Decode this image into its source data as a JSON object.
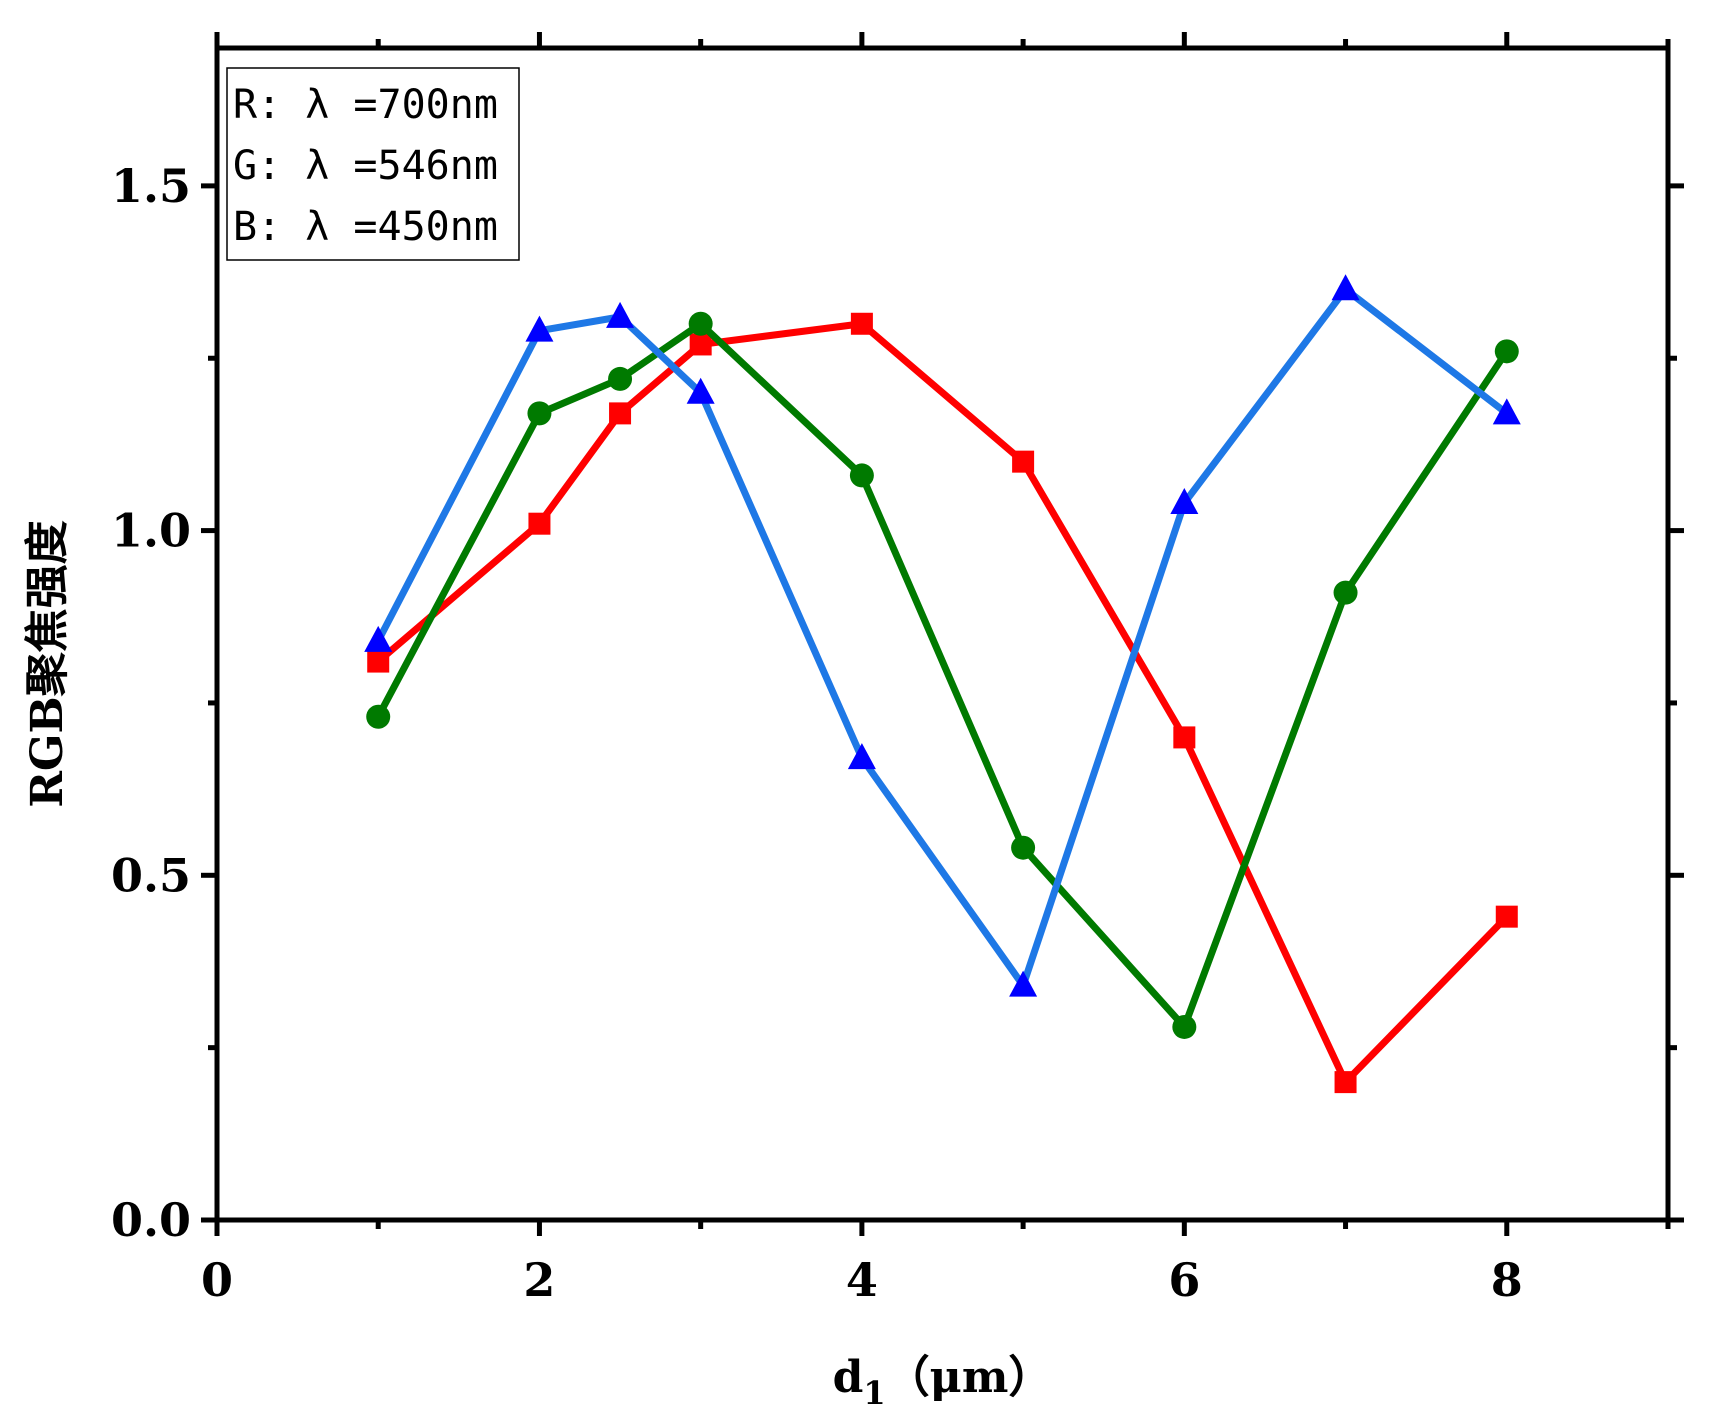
{
  "chart_data": {
    "type": "line",
    "title": "",
    "xlabel": "d",
    "xlabel_subscript": "1",
    "xlabel_unit": "（μm）",
    "ylabel": "RGB聚焦强度",
    "xlim": [
      0,
      9
    ],
    "ylim": [
      0,
      1.7
    ],
    "xticks": [
      0,
      2,
      4,
      6,
      8
    ],
    "xtick_labels": [
      "0",
      "2",
      "4",
      "6",
      "8"
    ],
    "yticks": [
      0.0,
      0.5,
      1.0,
      1.5
    ],
    "ytick_labels": [
      "0.0",
      "0.5",
      "1.0",
      "1.5"
    ],
    "grid": false,
    "legend_position": "top-left",
    "legend": [
      "R: λ =700nm",
      "G: λ =546nm",
      "B: λ =450nm"
    ],
    "series": [
      {
        "name": "R",
        "color": "#ff0000",
        "marker": "square",
        "x": [
          1,
          2,
          2.5,
          3,
          4,
          5,
          6,
          7,
          8
        ],
        "values": [
          0.81,
          1.01,
          1.17,
          1.27,
          1.3,
          1.1,
          0.7,
          0.2,
          0.44
        ]
      },
      {
        "name": "G",
        "color": "#007a00",
        "marker": "circle",
        "x": [
          1,
          2,
          2.5,
          3,
          4,
          5,
          6,
          7,
          8
        ],
        "values": [
          0.73,
          1.17,
          1.22,
          1.3,
          1.08,
          0.54,
          0.28,
          0.91,
          1.26
        ]
      },
      {
        "name": "B",
        "color": "#1e78e6",
        "marker_color": "#0000ff",
        "marker": "triangle",
        "x": [
          1,
          2,
          2.5,
          3,
          4,
          5,
          6,
          7,
          8
        ],
        "values": [
          0.84,
          1.29,
          1.31,
          1.2,
          0.67,
          0.34,
          1.04,
          1.35,
          1.17
        ]
      }
    ]
  }
}
